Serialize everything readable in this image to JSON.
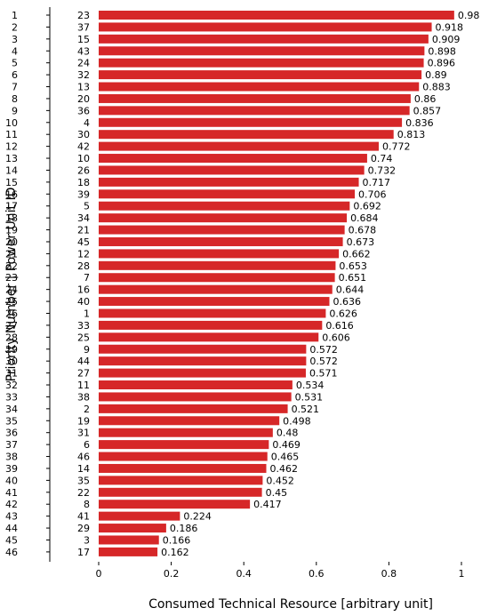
{
  "chart_data": {
    "type": "bar",
    "orientation": "horizontal",
    "xlabel": "Consumed Technical Resource [arbitrary unit]",
    "ylabel": "Priority Number | Power Unit ID",
    "xlim": [
      0,
      1
    ],
    "xticks": [
      "0",
      "0.2",
      "0.4",
      "0.6",
      "0.8",
      "1"
    ],
    "bar_color": "#d62728",
    "grid": false,
    "priorities": [
      "1",
      "2",
      "3",
      "4",
      "5",
      "6",
      "7",
      "8",
      "9",
      "10",
      "11",
      "12",
      "13",
      "14",
      "15",
      "16",
      "17",
      "18",
      "19",
      "20",
      "21",
      "22",
      "23",
      "24",
      "25",
      "26",
      "27",
      "28",
      "29",
      "30",
      "31",
      "32",
      "33",
      "34",
      "35",
      "36",
      "37",
      "38",
      "39",
      "40",
      "41",
      "42",
      "43",
      "44",
      "45",
      "46"
    ],
    "unit_ids": [
      "23",
      "37",
      "15",
      "43",
      "24",
      "32",
      "13",
      "20",
      "36",
      "4",
      "30",
      "42",
      "10",
      "26",
      "18",
      "39",
      "5",
      "34",
      "21",
      "45",
      "12",
      "28",
      "7",
      "16",
      "40",
      "1",
      "33",
      "25",
      "9",
      "44",
      "27",
      "11",
      "38",
      "2",
      "19",
      "31",
      "6",
      "46",
      "14",
      "35",
      "22",
      "8",
      "41",
      "29",
      "3",
      "17"
    ],
    "values": [
      0.98,
      0.918,
      0.909,
      0.898,
      0.896,
      0.89,
      0.883,
      0.86,
      0.857,
      0.836,
      0.813,
      0.772,
      0.74,
      0.732,
      0.717,
      0.706,
      0.692,
      0.684,
      0.678,
      0.673,
      0.662,
      0.653,
      0.651,
      0.644,
      0.636,
      0.626,
      0.616,
      0.606,
      0.572,
      0.572,
      0.571,
      0.534,
      0.531,
      0.521,
      0.498,
      0.48,
      0.469,
      0.465,
      0.462,
      0.452,
      0.45,
      0.417,
      0.224,
      0.186,
      0.166,
      0.162
    ],
    "value_labels": [
      "0.98",
      "0.918",
      "0.909",
      "0.898",
      "0.896",
      "0.89",
      "0.883",
      "0.86",
      "0.857",
      "0.836",
      "0.813",
      "0.772",
      "0.74",
      "0.732",
      "0.717",
      "0.706",
      "0.692",
      "0.684",
      "0.678",
      "0.673",
      "0.662",
      "0.653",
      "0.651",
      "0.644",
      "0.636",
      "0.626",
      "0.616",
      "0.606",
      "0.572",
      "0.572",
      "0.571",
      "0.534",
      "0.531",
      "0.521",
      "0.498",
      "0.48",
      "0.469",
      "0.465",
      "0.462",
      "0.452",
      "0.45",
      "0.417",
      "0.224",
      "0.186",
      "0.166",
      "0.162"
    ]
  }
}
